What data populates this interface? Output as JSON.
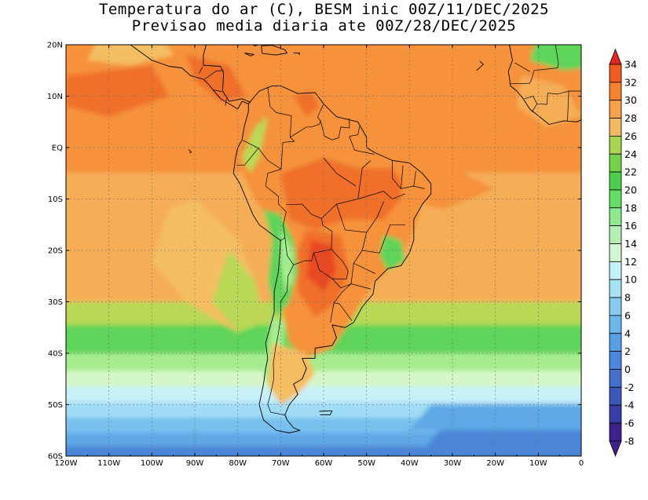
{
  "title": {
    "line1": "Temperatura do ar (C), BESM inic 00Z/11/DEC/2025",
    "line2": "Previsao media diaria ate 00Z/28/DEC/2025"
  },
  "axes": {
    "lon_labels": [
      "120W",
      "110W",
      "100W",
      "90W",
      "80W",
      "70W",
      "60W",
      "50W",
      "40W",
      "30W",
      "20W",
      "10W",
      "0"
    ],
    "lat_labels": [
      "20N",
      "10N",
      "EQ",
      "10S",
      "20S",
      "30S",
      "40S",
      "50S",
      "60S"
    ]
  },
  "colorbar": {
    "labels": [
      "34",
      "32",
      "30",
      "28",
      "26",
      "24",
      "22",
      "20",
      "18",
      "16",
      "14",
      "12",
      "10",
      "8",
      "6",
      "4",
      "2",
      "0",
      "-2",
      "-4",
      "-6",
      "-8"
    ],
    "colors": [
      "#e8241c",
      "#f25a1e",
      "#f5822e",
      "#f7a24a",
      "#f2b961",
      "#a8d650",
      "#74d24a",
      "#4cce4c",
      "#66dd66",
      "#8ee88e",
      "#b4f0b4",
      "#d2f6d2",
      "#c4f0fa",
      "#a6e2f6",
      "#86ccf2",
      "#6cb6ec",
      "#5a9ee6",
      "#4e86dc",
      "#4670cc",
      "#3e58b8",
      "#3a3ea4",
      "#40208c"
    ]
  },
  "map": {
    "lon_range": [
      -120,
      0
    ],
    "lat_range": [
      -60,
      20
    ],
    "fill_colors": {
      "deep_red": "#e84a22",
      "red": "#f0702c",
      "orange": "#f5923a",
      "light_orange": "#f5ae56",
      "pale_orange": "#f4bd62",
      "yellow_green": "#b8d856",
      "green": "#5ed45a",
      "light_green": "#a6ec8e",
      "pale_green": "#d4f7c8",
      "pale_cyan": "#c8f0f8",
      "light_blue": "#a0dcf4",
      "blue": "#78c0ee",
      "mid_blue": "#5fa8e6",
      "dark_blue": "#4c86d6"
    }
  }
}
